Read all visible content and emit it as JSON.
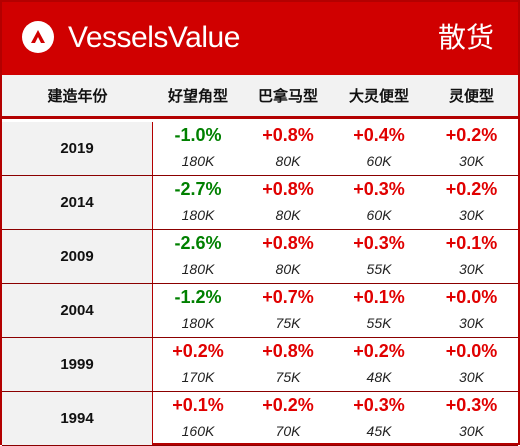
{
  "header": {
    "brand": "VesselsValue",
    "category": "散货",
    "logo_icon": "vesselsvalue-logo-icon",
    "accent_color": "#d00000"
  },
  "table": {
    "columns": [
      "建造年份",
      "好望角型",
      "巴拿马型",
      "大灵便型",
      "灵便型"
    ],
    "rows": [
      {
        "year": "2019",
        "cells": [
          {
            "change": "-1.0%",
            "size": "180K",
            "trend": "down"
          },
          {
            "change": "+0.8%",
            "size": "80K",
            "trend": "up"
          },
          {
            "change": "+0.4%",
            "size": "60K",
            "trend": "up"
          },
          {
            "change": "+0.2%",
            "size": "30K",
            "trend": "up"
          }
        ]
      },
      {
        "year": "2014",
        "cells": [
          {
            "change": "-2.7%",
            "size": "180K",
            "trend": "down"
          },
          {
            "change": "+0.8%",
            "size": "80K",
            "trend": "up"
          },
          {
            "change": "+0.3%",
            "size": "60K",
            "trend": "up"
          },
          {
            "change": "+0.2%",
            "size": "30K",
            "trend": "up"
          }
        ]
      },
      {
        "year": "2009",
        "cells": [
          {
            "change": "-2.6%",
            "size": "180K",
            "trend": "down"
          },
          {
            "change": "+0.8%",
            "size": "80K",
            "trend": "up"
          },
          {
            "change": "+0.3%",
            "size": "55K",
            "trend": "up"
          },
          {
            "change": "+0.1%",
            "size": "30K",
            "trend": "up"
          }
        ]
      },
      {
        "year": "2004",
        "cells": [
          {
            "change": "-1.2%",
            "size": "180K",
            "trend": "down"
          },
          {
            "change": "+0.7%",
            "size": "75K",
            "trend": "up"
          },
          {
            "change": "+0.1%",
            "size": "55K",
            "trend": "up"
          },
          {
            "change": "+0.0%",
            "size": "30K",
            "trend": "up"
          }
        ]
      },
      {
        "year": "1999",
        "cells": [
          {
            "change": "+0.2%",
            "size": "170K",
            "trend": "up"
          },
          {
            "change": "+0.8%",
            "size": "75K",
            "trend": "up"
          },
          {
            "change": "+0.2%",
            "size": "48K",
            "trend": "up"
          },
          {
            "change": "+0.0%",
            "size": "30K",
            "trend": "up"
          }
        ]
      },
      {
        "year": "1994",
        "cells": [
          {
            "change": "+0.1%",
            "size": "160K",
            "trend": "up"
          },
          {
            "change": "+0.2%",
            "size": "70K",
            "trend": "up"
          },
          {
            "change": "+0.3%",
            "size": "45K",
            "trend": "up"
          },
          {
            "change": "+0.3%",
            "size": "30K",
            "trend": "up"
          }
        ]
      }
    ],
    "colors": {
      "up": "#e00000",
      "down": "#008000"
    }
  }
}
